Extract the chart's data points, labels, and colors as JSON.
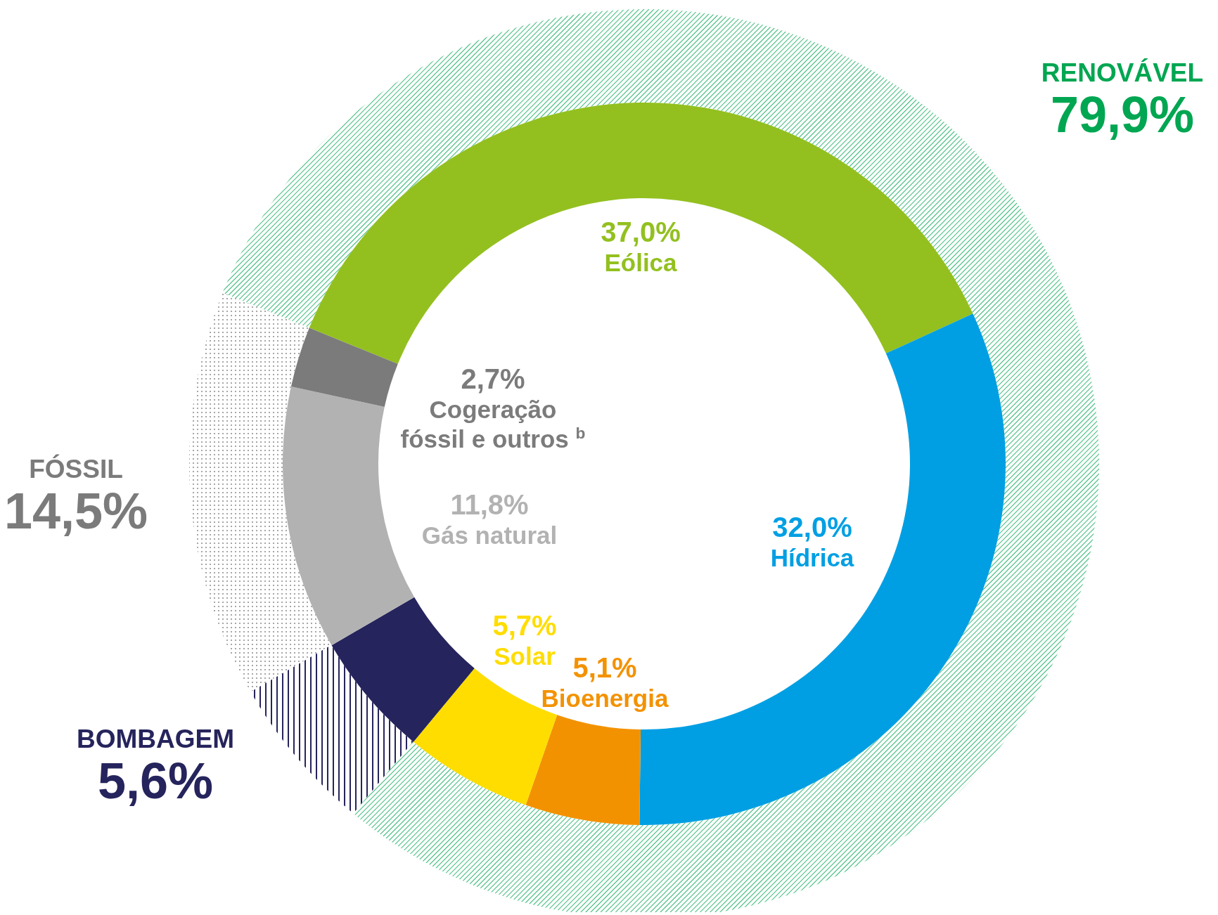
{
  "chart_data": [
    {
      "type": "donut",
      "categories": [
        "RENOVÁVEL",
        "BOMBAGEM",
        "FÓSSIL"
      ],
      "values": [
        79.9,
        5.6,
        14.5
      ],
      "value_labels": [
        "79,9%",
        "5,6%",
        "14,5%"
      ],
      "colors": [
        "#00a651",
        "#26245c",
        "#7b7b7b"
      ]
    },
    {
      "type": "donut",
      "categories": [
        "Eólica",
        "Hídrica",
        "Bioenergia",
        "Solar",
        null,
        "Gás natural",
        "Cogeração\nfóssil e outros $^{b}$"
      ],
      "values": [
        37.0,
        32.0,
        5.1,
        5.7,
        5.6,
        11.8,
        2.7
      ],
      "value_labels": [
        "37,0%",
        "32,0%",
        "5,1%",
        "5,7%",
        null,
        "11,8%",
        "2,7%"
      ],
      "colors": [
        "#93c01f",
        "#009fe3",
        "#f39200",
        "#ffdd00",
        "#26245c",
        "#b2b2b2",
        "#7b7b7b"
      ]
    }
  ]
}
